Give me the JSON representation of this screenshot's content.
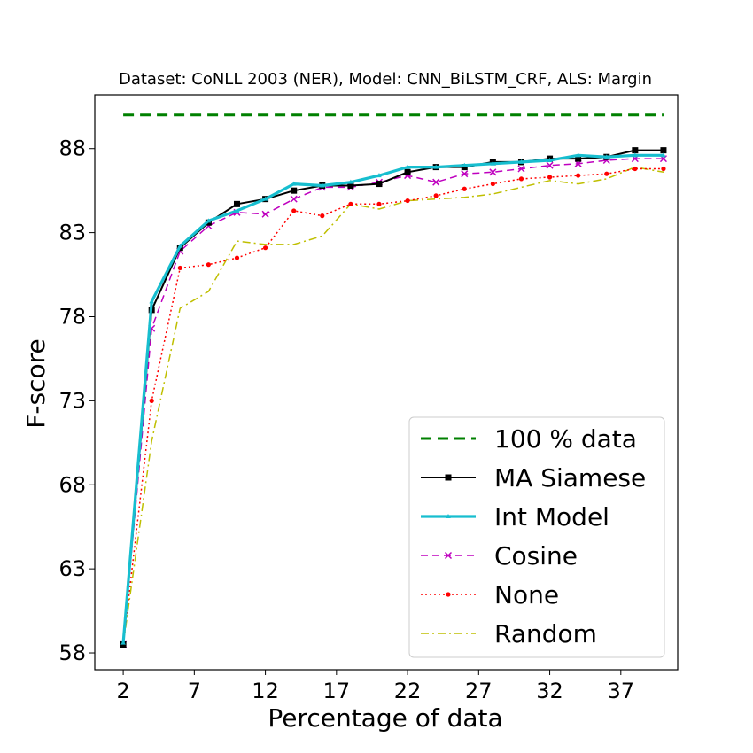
{
  "chart_data": {
    "type": "line",
    "title": "Dataset: CoNLL 2003 (NER), Model: CNN_BiLSTM_CRF, ALS: Margin",
    "xlabel": "Percentage of data",
    "ylabel": "F-score",
    "xlim": [
      0,
      41
    ],
    "ylim": [
      57,
      91.2
    ],
    "x_ticks": [
      2,
      7,
      12,
      17,
      22,
      27,
      32,
      37
    ],
    "y_ticks": [
      58,
      63,
      68,
      73,
      78,
      83,
      88
    ],
    "grid": false,
    "legend_position": "lower-right",
    "x": [
      2,
      4,
      6,
      8,
      10,
      12,
      14,
      16,
      18,
      20,
      22,
      24,
      26,
      28,
      30,
      32,
      34,
      36,
      38,
      40
    ],
    "series": [
      {
        "name": "100 % data",
        "color": "#008000",
        "style": "dashed",
        "marker": "none",
        "constant": true,
        "values": [
          90.0,
          90.0,
          90.0,
          90.0,
          90.0,
          90.0,
          90.0,
          90.0,
          90.0,
          90.0,
          90.0,
          90.0,
          90.0,
          90.0,
          90.0,
          90.0,
          90.0,
          90.0,
          90.0,
          90.0
        ]
      },
      {
        "name": "MA Siamese",
        "color": "#000000",
        "style": "solid",
        "marker": "square",
        "values": [
          58.5,
          78.4,
          82.1,
          83.6,
          84.7,
          85.0,
          85.5,
          85.8,
          85.8,
          85.9,
          86.6,
          86.9,
          86.9,
          87.2,
          87.2,
          87.4,
          87.4,
          87.5,
          87.9,
          87.9
        ]
      },
      {
        "name": "Int Model",
        "color": "#17BECF",
        "style": "solid-thick",
        "marker": "triangle",
        "values": [
          58.6,
          78.9,
          82.2,
          83.7,
          84.3,
          85.0,
          85.9,
          85.8,
          86.0,
          86.4,
          86.9,
          86.9,
          87.0,
          87.1,
          87.2,
          87.3,
          87.6,
          87.5,
          87.6,
          87.6
        ]
      },
      {
        "name": "Cosine",
        "color": "#BF00BF",
        "style": "dashed",
        "marker": "x",
        "values": [
          58.5,
          77.3,
          81.9,
          83.4,
          84.2,
          84.1,
          85.0,
          85.7,
          85.7,
          86.0,
          86.4,
          86.0,
          86.5,
          86.6,
          86.8,
          87.0,
          87.1,
          87.3,
          87.4,
          87.4
        ]
      },
      {
        "name": "None",
        "color": "#FF0000",
        "style": "dotted",
        "marker": "dot",
        "values": [
          58.5,
          73.0,
          80.9,
          81.1,
          81.5,
          82.1,
          84.3,
          84.0,
          84.7,
          84.7,
          84.9,
          85.2,
          85.6,
          85.9,
          86.2,
          86.3,
          86.4,
          86.5,
          86.8,
          86.8
        ]
      },
      {
        "name": "Random",
        "color": "#BFBF00",
        "style": "dashdot",
        "marker": "none",
        "values": [
          58.5,
          70.6,
          78.5,
          79.5,
          82.5,
          82.3,
          82.3,
          82.8,
          84.7,
          84.4,
          84.9,
          85.0,
          85.1,
          85.3,
          85.7,
          86.1,
          85.9,
          86.2,
          86.9,
          86.6
        ]
      }
    ]
  }
}
